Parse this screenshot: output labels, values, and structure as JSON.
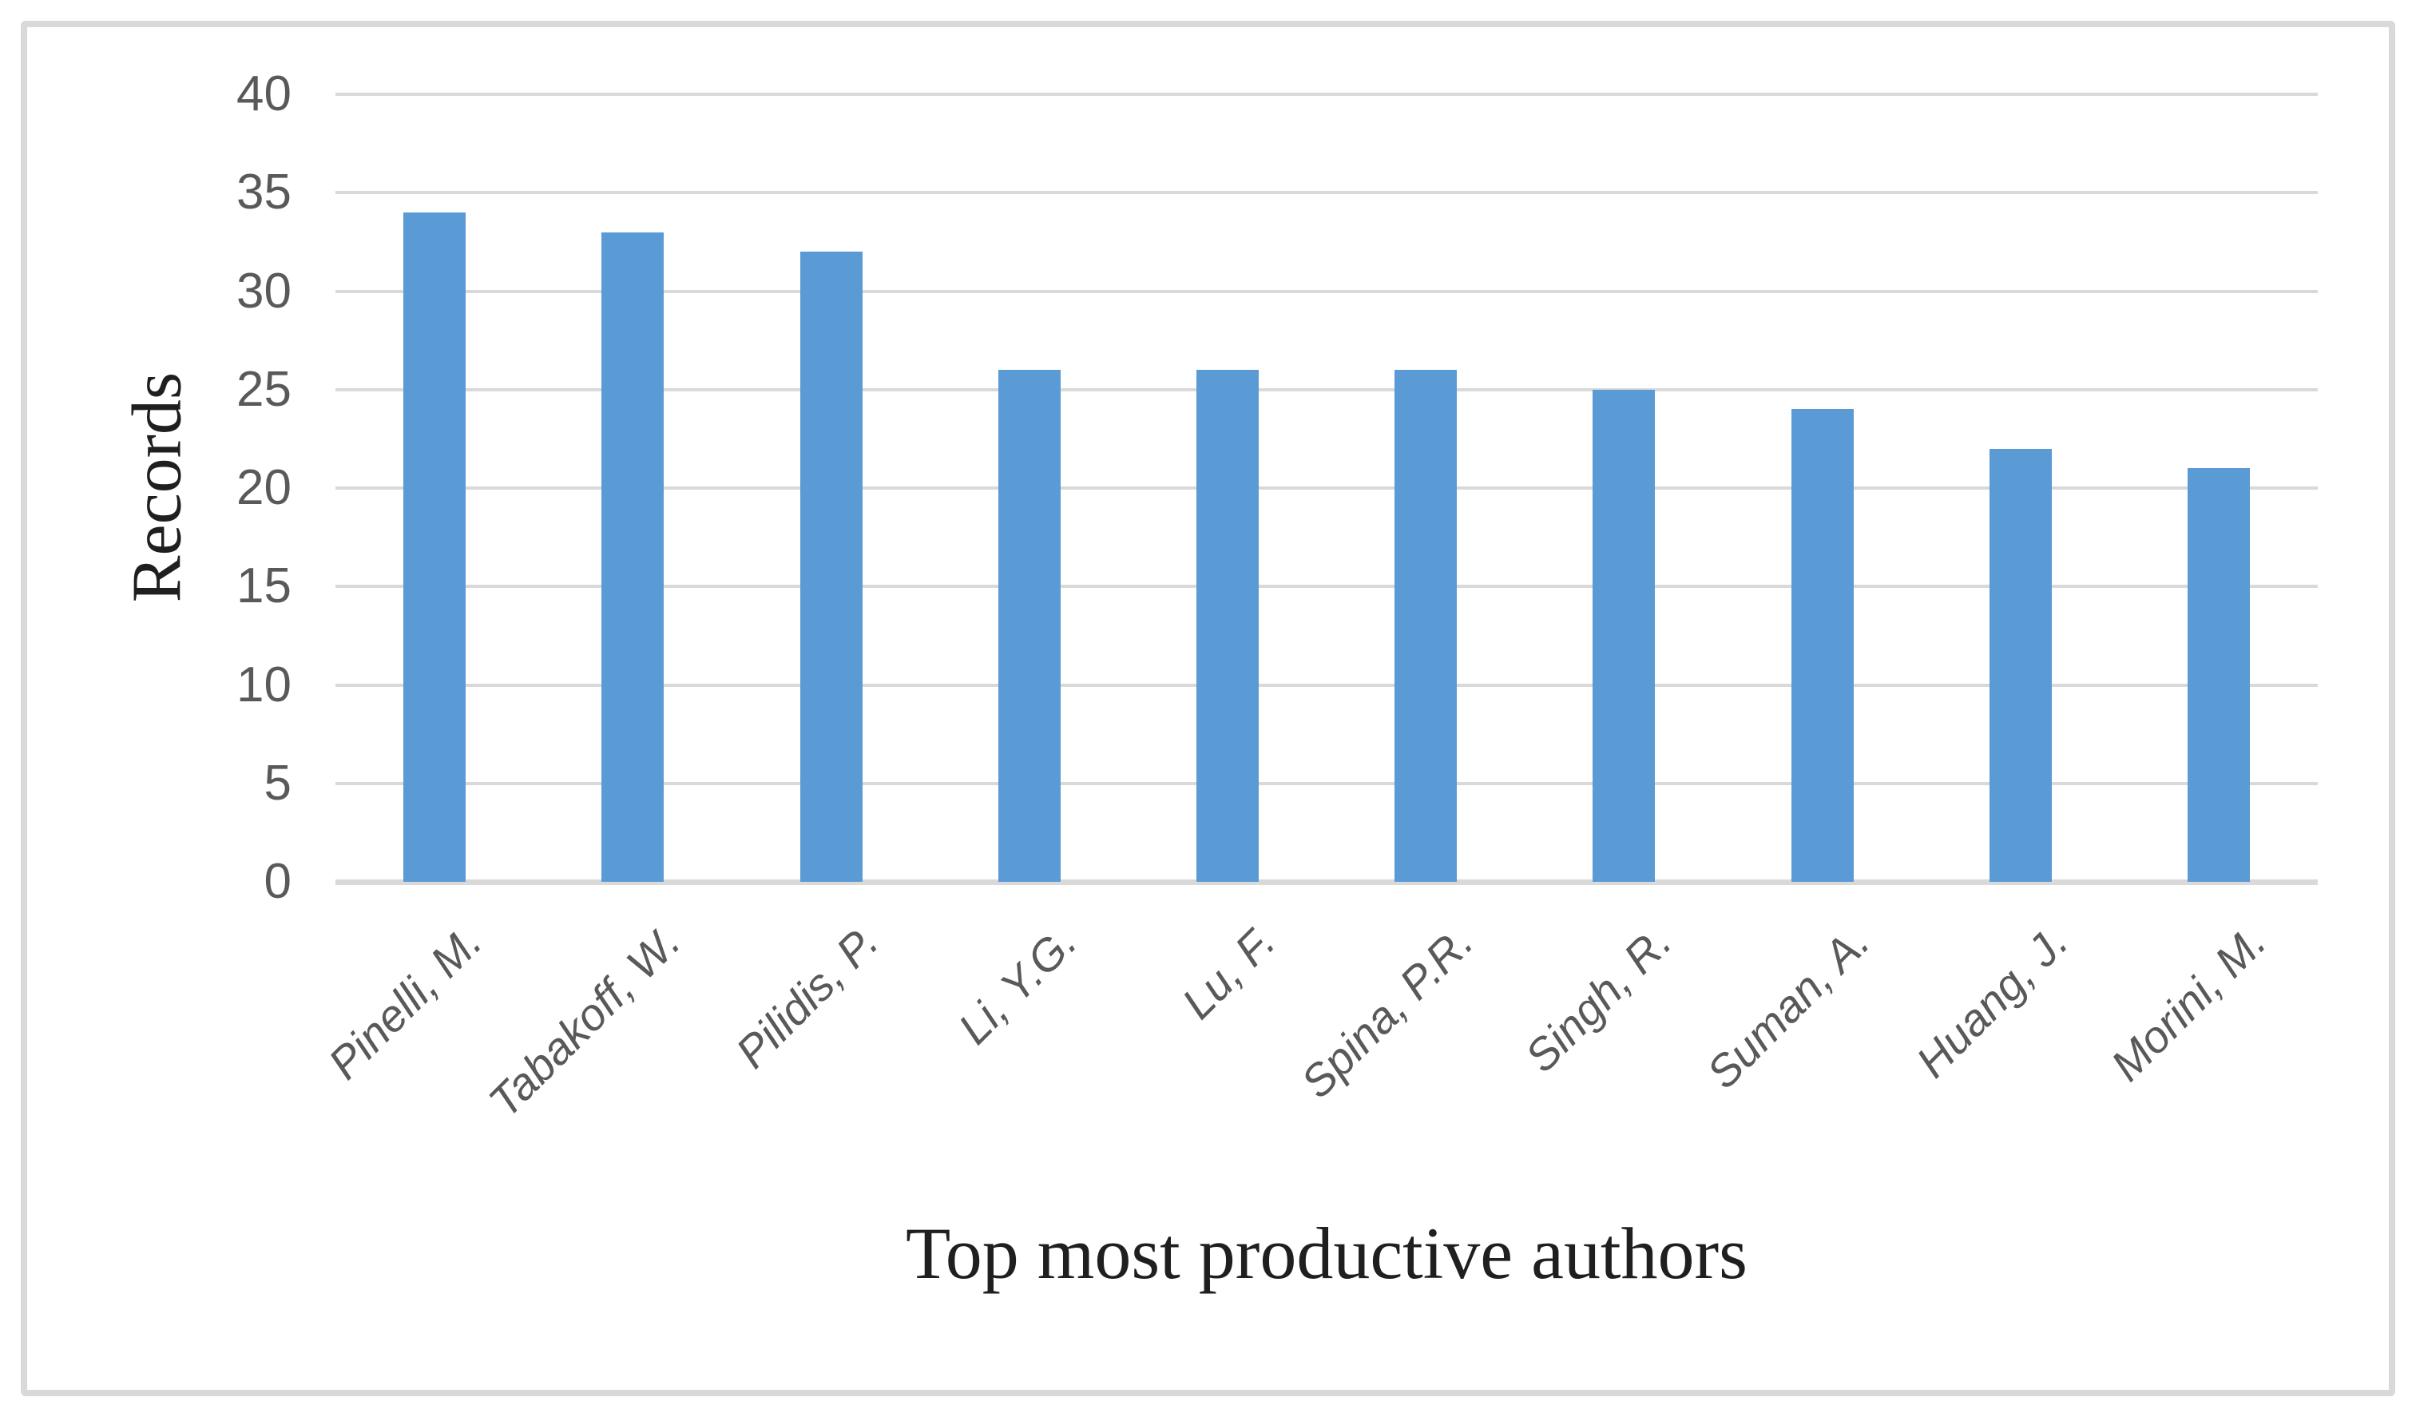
{
  "chart_data": {
    "type": "bar",
    "categories": [
      "Pinelli, M.",
      "Tabakoff, W.",
      "Pilidis, P.",
      "Li, Y.G.",
      "Lu, F.",
      "Spina, P.R.",
      "Singh, R.",
      "Suman, A.",
      "Huang, J.",
      "Morini, M."
    ],
    "values": [
      34,
      33,
      32,
      26,
      26,
      26,
      25,
      24,
      22,
      21
    ],
    "title": "",
    "xlabel": "Top most productive authors",
    "ylabel": "Records",
    "ylim": [
      0,
      40
    ],
    "yticks": [
      0,
      5,
      10,
      15,
      20,
      25,
      30,
      35,
      40
    ],
    "grid": "horizontal",
    "legend": "none",
    "colors": {
      "bar": "#5b9bd5",
      "gridline": "#d9d9d9",
      "frame_border": "#d9d9d9",
      "tick_labels": "#595959",
      "axis_titles": "#1f1f1f"
    }
  }
}
